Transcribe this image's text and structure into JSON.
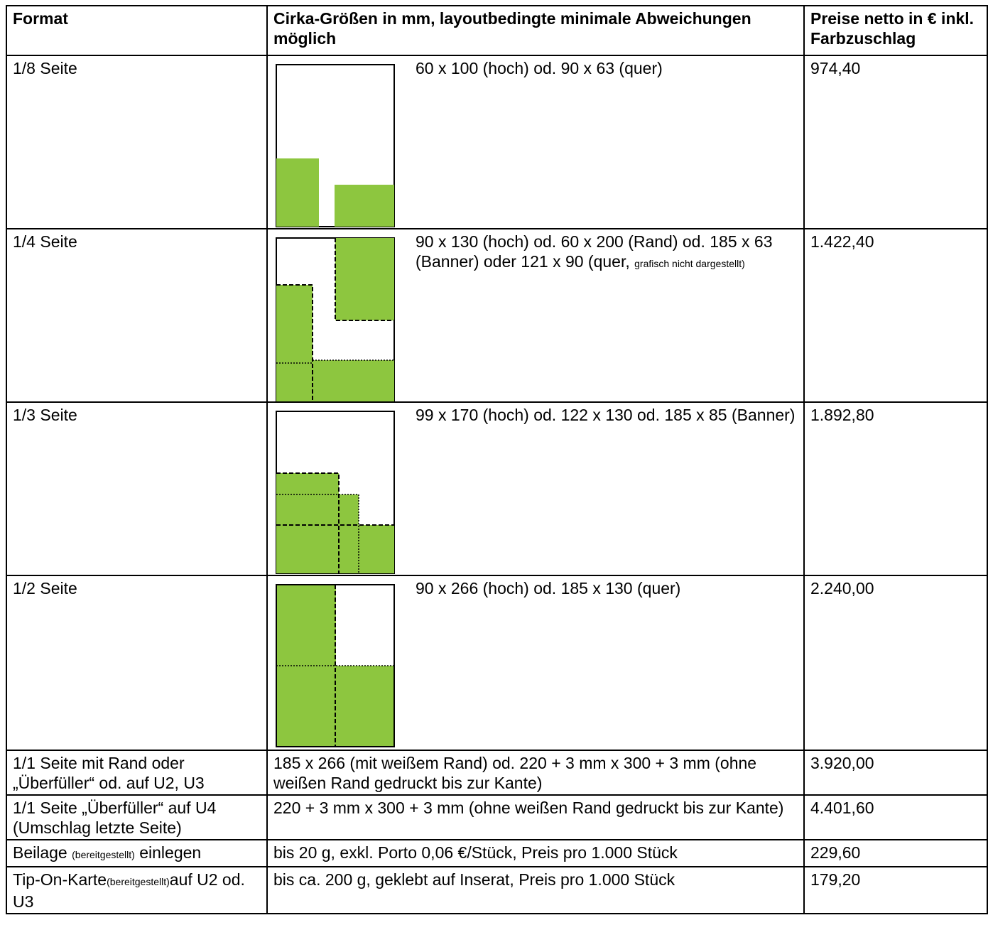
{
  "headers": {
    "format": "Format",
    "size": "Cirka-Größen in mm, layoutbedingte minimale Abweichungen möglich",
    "price": "Preise netto in € inkl. Farbzuschlag"
  },
  "rows": [
    {
      "format": "1/8 Seite",
      "size": "60 x 100 (hoch) od. 90 x 63 (quer)",
      "price": "974,40"
    },
    {
      "format": "1/4 Seite",
      "size": "90 x 130 (hoch) od. 60 x 200 (Rand) od. 185 x 63 (Banner) oder 121 x 90 (quer,",
      "size_small": "grafisch nicht dargestellt)",
      "price": "1.422,40"
    },
    {
      "format": "1/3 Seite",
      "size": "99 x 170 (hoch) od. 122 x 130 od. 185 x 85 (Banner)",
      "price": "1.892,80"
    },
    {
      "format": "1/2 Seite",
      "size": "90 x 266 (hoch) od. 185 x 130 (quer)",
      "price": "2.240,00"
    },
    {
      "format": "1/1 Seite mit Rand oder „Überfüller“ od. auf U2, U3",
      "size": "185 x 266 (mit weißem Rand) od. 220 + 3 mm x 300 + 3 mm (ohne weißen Rand gedruckt bis zur Kante)",
      "price": "3.920,00"
    },
    {
      "format": "1/1 Seite „Überfüller“ auf U4 (Umschlag letzte Seite)",
      "size": "220 + 3 mm x 300 + 3 mm (ohne weißen Rand gedruckt bis zur Kante)",
      "price": "4.401,60"
    },
    {
      "format_a": "Beilage",
      "format_small": "(bereitgestellt)",
      "format_b": "einlegen",
      "size": "bis 20 g, exkl. Porto 0,06 €/Stück, Preis pro 1.000 Stück",
      "price": "229,60"
    },
    {
      "format_a": "Tip-On-Karte",
      "format_small": "(bereitgestellt)",
      "format_b": "auf U2 od. U3",
      "size": "bis ca. 200 g, geklebt auf Inserat, Preis pro 1.000 Stück",
      "price": "179,20"
    }
  ],
  "colors": {
    "fill": "#8dc63f",
    "border": "#000000"
  }
}
